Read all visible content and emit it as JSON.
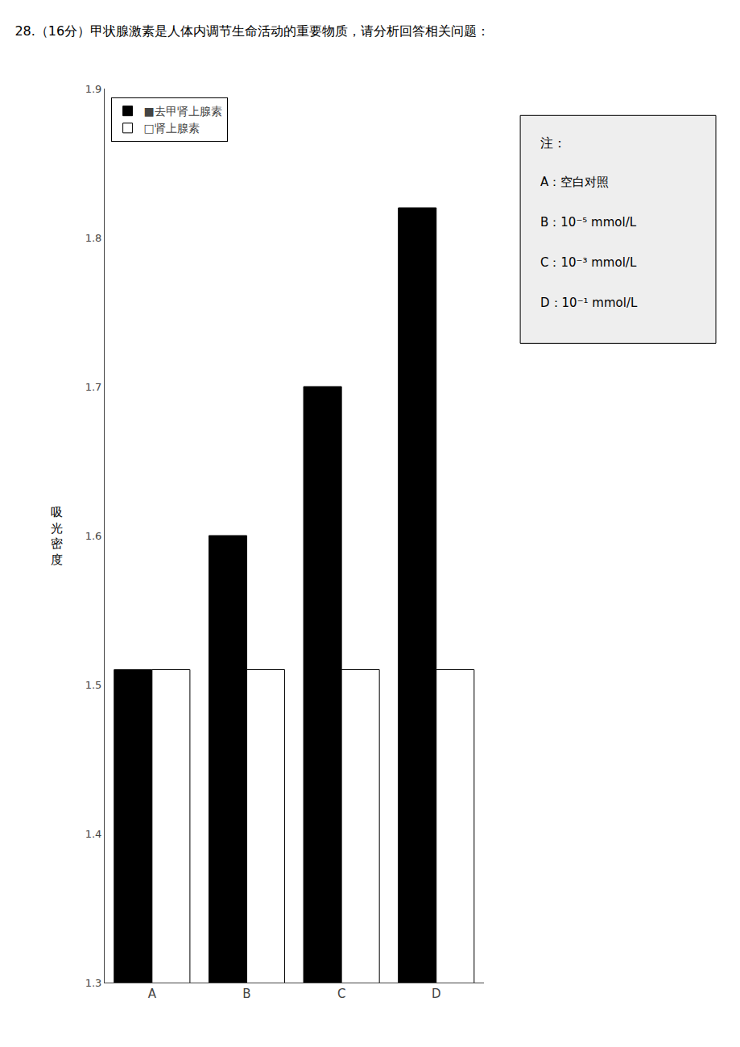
{
  "chart_data": {
    "type": "bar",
    "title": "28.（16分）甲状腺激素是人体内调节生命活动的重要物质，请分析回答相关问题：",
    "ylabel": "吸\n光\n密\n度",
    "categories": [
      "A",
      "B",
      "C",
      "D"
    ],
    "series": [
      {
        "name": "■去甲肾上腺素",
        "color": "#000000",
        "values": [
          1.51,
          1.6,
          1.7,
          1.82
        ]
      },
      {
        "name": "□肾上腺素",
        "color": "#ffffff",
        "values": [
          1.51,
          1.51,
          1.51,
          1.51
        ]
      }
    ],
    "ylim": [
      1.3,
      1.9
    ],
    "yticks": [
      1.3,
      1.4,
      1.5,
      1.6,
      1.7,
      1.8,
      1.9
    ],
    "grid": false,
    "legend": "upper left",
    "annotations": [
      "注：",
      "A：空白对照",
      "B：10⁻⁵ mmol/L",
      "C：10⁻³ mmol/L",
      "D：10⁻¹ mmol/L"
    ]
  }
}
